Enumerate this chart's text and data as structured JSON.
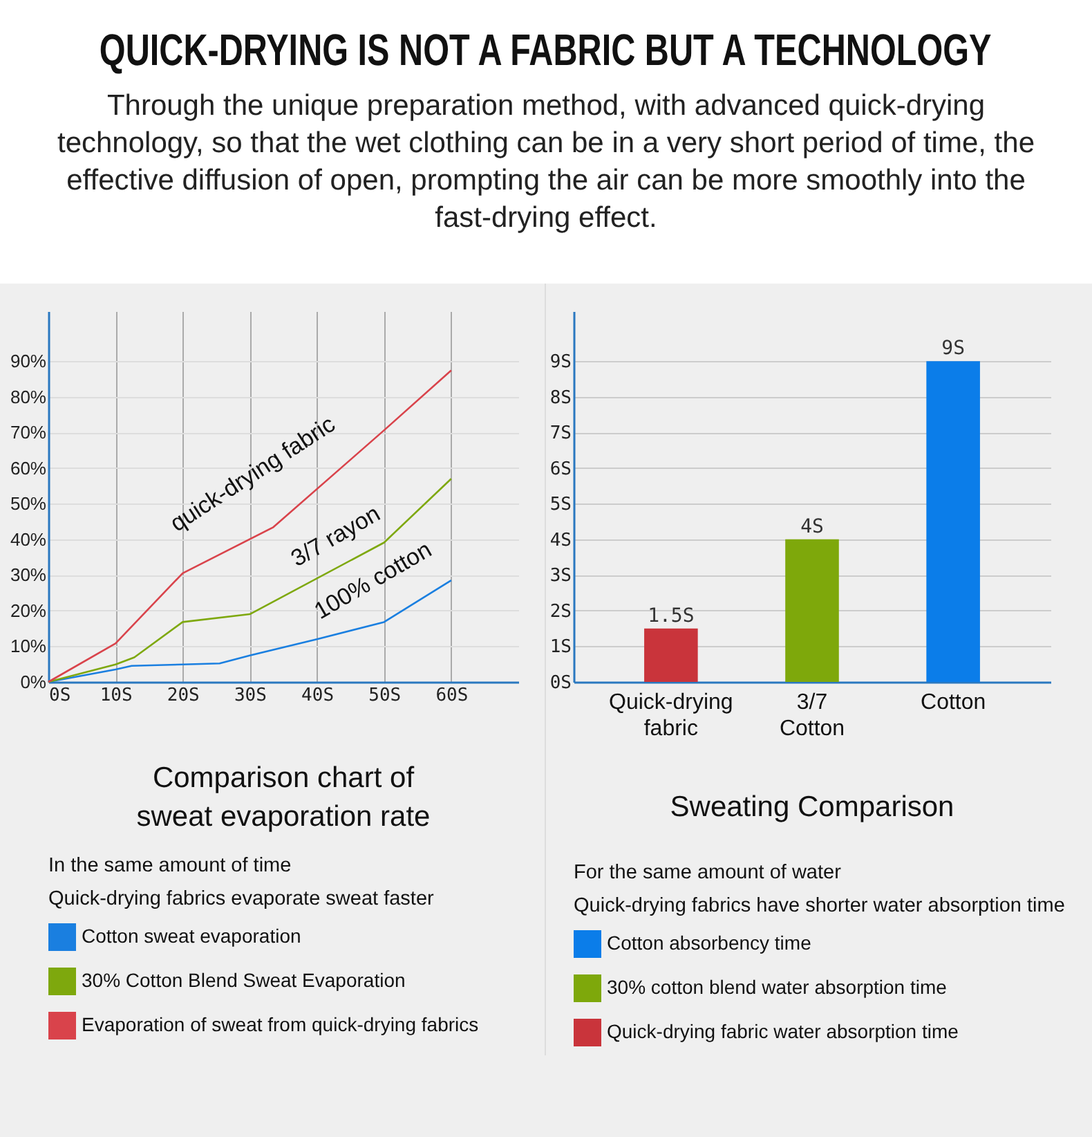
{
  "chart_data": [
    {
      "type": "other",
      "title": "QUICK-DRYING IS NOT A FABRIC BUT A TECHNOLOGY",
      "subtitle": "Through the unique preparation method, with advanced quick-drying technology, so that the wet clothing can be in a very short period of time, the effective diffusion of open, prompting the air can be more smoothly into the fast-drying effect."
    },
    {
      "type": "line",
      "title": "Comparison chart of sweat evaporation rate",
      "legend_title": "In the same amount of time",
      "legend": "bottom",
      "grid": true,
      "xlim": [
        0,
        70
      ],
      "xticks": [
        {
          "value": 0,
          "label": "0S"
        },
        {
          "value": 10,
          "label": "10S"
        },
        {
          "value": 20,
          "label": "20S"
        },
        {
          "value": 30,
          "label": "30S"
        },
        {
          "value": 40,
          "label": "40S"
        },
        {
          "value": 50,
          "label": "50S"
        },
        {
          "value": 60,
          "label": "60S"
        }
      ],
      "ylim": [
        0,
        104
      ],
      "yticks": [
        {
          "value": 0,
          "label": "0%"
        },
        {
          "value": 10,
          "label": "10%"
        },
        {
          "value": 20,
          "label": "20%"
        },
        {
          "value": 30,
          "label": "30%"
        },
        {
          "value": 40,
          "label": "40%"
        },
        {
          "value": 50,
          "label": "50%"
        },
        {
          "value": 60,
          "label": "60%"
        },
        {
          "value": 70,
          "label": "70%"
        },
        {
          "value": 80,
          "label": "80%"
        },
        {
          "value": 90,
          "label": "90%"
        }
      ],
      "series": [
        {
          "name": "Cotton sweat evaporation",
          "color": "#1a7fe0",
          "x": [
            0,
            10,
            12.4,
            20,
            25.5,
            30,
            40,
            50,
            60
          ],
          "values": [
            0,
            3.5,
            4.5,
            4.9,
            5.2,
            7.4,
            12,
            16.8,
            28.5
          ]
        },
        {
          "name": "30% Cotton Blend Sweat Evaporation",
          "color": "#7ea80d",
          "x": [
            0,
            10,
            12.8,
            20,
            30,
            50,
            60
          ],
          "values": [
            0,
            4.9,
            6.9,
            16.8,
            19,
            39.1,
            57
          ]
        },
        {
          "name": "Evaporation of sweat from quick-drying fabrics",
          "color": "#d9434b",
          "x": [
            0,
            10,
            20,
            33.5,
            50,
            60
          ],
          "values": [
            0,
            10.8,
            30.5,
            43.4,
            70.6,
            87.4
          ]
        }
      ],
      "annotations": [
        "quick-drying fabric",
        "3/7 rayon",
        "100% cotton",
        "Quick-drying fabrics evaporate sweat faster"
      ]
    },
    {
      "type": "bar",
      "title": "Sweating Comparison",
      "legend_title": "For the same amount of water",
      "legend": "bottom",
      "grid": "y",
      "categories": [
        "Quick-drying fabric",
        "3/7 Cotton",
        "Cotton"
      ],
      "ylim": [
        0,
        10.4
      ],
      "yticks": [
        {
          "value": 0,
          "label": "0S"
        },
        {
          "value": 1,
          "label": "1S"
        },
        {
          "value": 2,
          "label": "2S"
        },
        {
          "value": 3,
          "label": "3S"
        },
        {
          "value": 4,
          "label": "4S"
        },
        {
          "value": 5,
          "label": "5S"
        },
        {
          "value": 6,
          "label": "6S"
        },
        {
          "value": 7,
          "label": "7S"
        },
        {
          "value": 8,
          "label": "8S"
        },
        {
          "value": 9,
          "label": "9S"
        }
      ],
      "series": [
        {
          "name": "Cotton absorbency time",
          "color": "#0b7de9",
          "values": [
            null,
            null,
            9
          ],
          "value_labels": [
            null,
            null,
            "9S"
          ]
        },
        {
          "name": "30% cotton blend water absorption time",
          "color": "#7ea80b",
          "values": [
            null,
            4,
            null
          ],
          "value_labels": [
            null,
            "4S",
            null
          ]
        },
        {
          "name": "Quick-drying fabric water absorption time",
          "color": "#c9343b",
          "values": [
            1.5,
            null,
            null
          ],
          "value_labels": [
            "1.5S",
            null,
            null
          ]
        }
      ],
      "annotations": [
        "Quick-drying fabrics have shorter water absorption time"
      ]
    }
  ]
}
